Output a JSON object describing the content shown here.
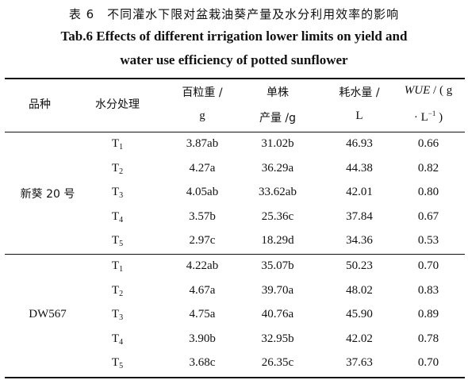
{
  "title_cn": "表 6　不同灌水下限对盆栽油葵产量及水分利用效率的影响",
  "title_en_line1": "Tab.6 Effects of different irrigation lower limits on yield and",
  "title_en_line2": "water use efficiency of potted sunflower",
  "headers": {
    "variety": "品种",
    "treatment": "水分处理",
    "weight_l1": "百粒重 /",
    "weight_l2": "g",
    "yield_l1": "单株",
    "yield_l2": "产量 /g",
    "water_l1": "耗水量 /",
    "water_l2": "L",
    "wue_name": "WUE",
    "wue_rest": " / ( g",
    "wue_l2a": "· L",
    "wue_sup": "−1",
    "wue_l2b": " )"
  },
  "groups": [
    {
      "variety": "新葵 20 号",
      "rows": [
        {
          "t": "T",
          "s": "1",
          "weight": "3.87ab",
          "yield": "31.02b",
          "water": "46.93",
          "wue": "0.66"
        },
        {
          "t": "T",
          "s": "2",
          "weight": "4.27a",
          "yield": "36.29a",
          "water": "44.38",
          "wue": "0.82"
        },
        {
          "t": "T",
          "s": "3",
          "weight": "4.05ab",
          "yield": "33.62ab",
          "water": "42.01",
          "wue": "0.80"
        },
        {
          "t": "T",
          "s": "4",
          "weight": "3.57b",
          "yield": "25.36c",
          "water": "37.84",
          "wue": "0.67"
        },
        {
          "t": "T",
          "s": "5",
          "weight": "2.97c",
          "yield": "18.29d",
          "water": "34.36",
          "wue": "0.53"
        }
      ]
    },
    {
      "variety": "DW567",
      "rows": [
        {
          "t": "T",
          "s": "1",
          "weight": "4.22ab",
          "yield": "35.07b",
          "water": "50.23",
          "wue": "0.70"
        },
        {
          "t": "T",
          "s": "2",
          "weight": "4.67a",
          "yield": "39.70a",
          "water": "48.02",
          "wue": "0.83"
        },
        {
          "t": "T",
          "s": "3",
          "weight": "4.75a",
          "yield": "40.76a",
          "water": "45.90",
          "wue": "0.89"
        },
        {
          "t": "T",
          "s": "4",
          "weight": "3.90b",
          "yield": "32.95b",
          "water": "42.02",
          "wue": "0.78"
        },
        {
          "t": "T",
          "s": "5",
          "weight": "3.68c",
          "yield": "26.35c",
          "water": "37.63",
          "wue": "0.70"
        }
      ]
    }
  ]
}
